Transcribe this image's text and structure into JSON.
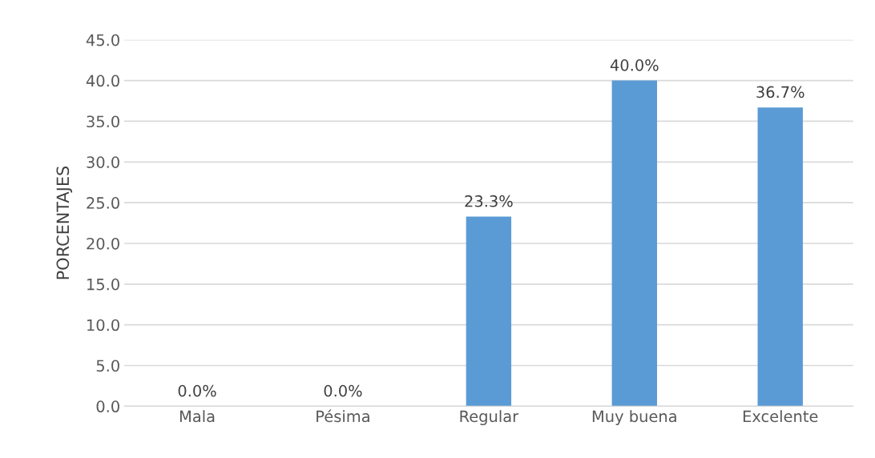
{
  "chart_data": {
    "type": "bar",
    "ylabel": "PORCENTAJES",
    "categories": [
      "Mala",
      "Pésima",
      "Regular",
      "Muy buena",
      "Excelente"
    ],
    "values": [
      0.0,
      0.0,
      23.3,
      40.0,
      36.7
    ],
    "value_labels": [
      "0.0%",
      "0.0%",
      "23.3%",
      "40.0%",
      "36.7%"
    ],
    "color": "#5b9bd5",
    "ylim": [
      0,
      45
    ],
    "yticks": [
      {
        "value": 0,
        "label": "0.0"
      },
      {
        "value": 5,
        "label": "5.0"
      },
      {
        "value": 10,
        "label": "10.0"
      },
      {
        "value": 15,
        "label": "15.0"
      },
      {
        "value": 20,
        "label": "20.0"
      },
      {
        "value": 25,
        "label": "25.0"
      },
      {
        "value": 30,
        "label": "30.0"
      },
      {
        "value": 35,
        "label": "35.0"
      },
      {
        "value": 40,
        "label": "40.0"
      },
      {
        "value": 45,
        "label": "45.0"
      }
    ],
    "grid": "y",
    "legend": false
  }
}
